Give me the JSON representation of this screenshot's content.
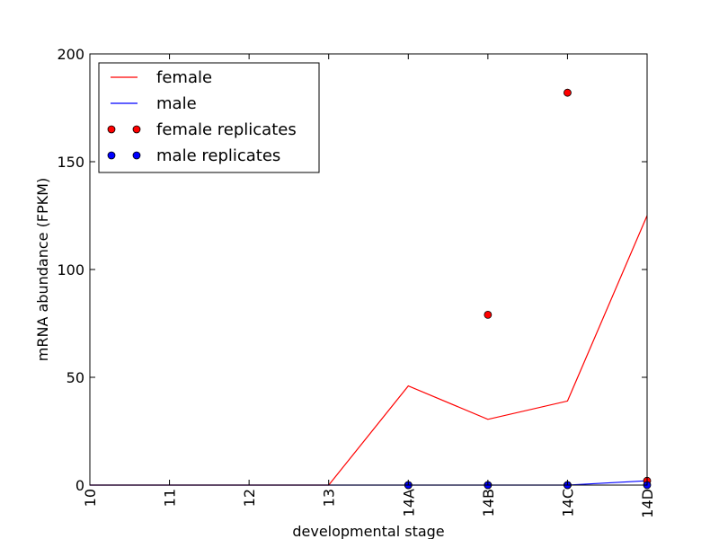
{
  "chart_data": {
    "type": "line",
    "xlabel": "developmental stage",
    "ylabel": "mRNA abundance (FPKM)",
    "categories": [
      "10",
      "11",
      "12",
      "13",
      "14A",
      "14B",
      "14C",
      "14D"
    ],
    "ylim": [
      0,
      200
    ],
    "yticks": [
      "0",
      "50",
      "100",
      "150",
      "200"
    ],
    "grid": false,
    "legend_position": "top-left",
    "series": [
      {
        "name": "female",
        "kind": "line",
        "color": "#ff0000",
        "values": [
          0,
          0,
          0,
          0,
          46,
          30.5,
          39,
          125
        ]
      },
      {
        "name": "male",
        "kind": "line",
        "color": "#0000ff",
        "values": [
          0,
          0,
          0,
          0,
          0,
          0,
          0,
          2
        ]
      },
      {
        "name": "female replicates",
        "kind": "points",
        "color": "#ff0000",
        "points": [
          [
            4,
            0
          ],
          [
            5,
            79
          ],
          [
            5,
            0
          ],
          [
            6,
            182
          ],
          [
            6,
            0
          ],
          [
            7,
            2
          ]
        ]
      },
      {
        "name": "male replicates",
        "kind": "points",
        "color": "#0000ff",
        "points": [
          [
            4,
            0
          ],
          [
            5,
            0
          ],
          [
            6,
            0
          ],
          [
            7,
            0
          ]
        ]
      }
    ]
  }
}
